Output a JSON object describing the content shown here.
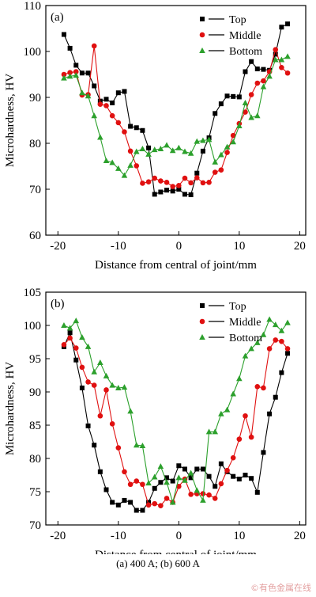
{
  "chart_data": [
    {
      "type": "line",
      "panel_label": "(a)",
      "xlabel": "Distance from central of joint/mm",
      "ylabel": "Microhardness, HV",
      "xlim": [
        -22,
        21
      ],
      "ylim": [
        60,
        110
      ],
      "xticks": [
        -20,
        -10,
        0,
        10,
        20
      ],
      "yticks": [
        60,
        70,
        80,
        90,
        100,
        110
      ],
      "legend_position": "top-right",
      "series": [
        {
          "name": "Top",
          "color": "#000000",
          "marker": "square",
          "x": [
            -19,
            -18,
            -17,
            -16,
            -15,
            -14,
            -13,
            -12,
            -11,
            -10,
            -9,
            -8,
            -7,
            -6,
            -5,
            -4,
            -3,
            -2,
            -1,
            0,
            1,
            2,
            3,
            4,
            5,
            6,
            7,
            8,
            9,
            10,
            11,
            12,
            13,
            14,
            15,
            16,
            17,
            18
          ],
          "y": [
            103.7,
            100.7,
            97.0,
            95.3,
            95.3,
            92.5,
            89.2,
            89.6,
            88.8,
            91.0,
            91.3,
            83.7,
            83.4,
            82.8,
            79.0,
            68.9,
            69.4,
            69.8,
            69.6,
            70.0,
            68.9,
            68.8,
            73.5,
            78.3,
            81.2,
            86.5,
            88.6,
            90.3,
            90.2,
            90.1,
            95.6,
            97.8,
            96.2,
            96.1,
            95.9,
            99.4,
            105.3,
            106.0
          ]
        },
        {
          "name": "Middle",
          "color": "#e01010",
          "marker": "circle",
          "x": [
            -19,
            -18,
            -17,
            -16,
            -15,
            -14,
            -13,
            -12,
            -11,
            -10,
            -9,
            -8,
            -7,
            -6,
            -5,
            -4,
            -3,
            -2,
            -1,
            0,
            1,
            2,
            3,
            4,
            5,
            6,
            7,
            8,
            9,
            10,
            11,
            12,
            13,
            14,
            15,
            16,
            17,
            18
          ],
          "y": [
            95.0,
            95.4,
            95.6,
            90.5,
            90.6,
            101.2,
            88.5,
            88.2,
            86.0,
            84.5,
            82.5,
            78.3,
            75.1,
            71.3,
            71.6,
            72.4,
            71.8,
            71.5,
            70.6,
            70.8,
            72.4,
            71.4,
            72.5,
            71.4,
            71.5,
            73.7,
            74.2,
            78.0,
            81.7,
            84.3,
            86.8,
            90.6,
            93.1,
            93.6,
            95.6,
            100.4,
            96.5,
            95.3
          ]
        },
        {
          "name": "Bottom",
          "color": "#2ca02c",
          "marker": "triangle",
          "x": [
            -19,
            -18,
            -17,
            -16,
            -15,
            -14,
            -13,
            -12,
            -11,
            -10,
            -9,
            -8,
            -7,
            -6,
            -5,
            -4,
            -3,
            -2,
            -1,
            0,
            1,
            2,
            3,
            4,
            5,
            6,
            7,
            8,
            9,
            10,
            11,
            12,
            13,
            14,
            15,
            16,
            17,
            18
          ],
          "y": [
            94.2,
            94.6,
            94.8,
            91.0,
            90.3,
            86.0,
            81.3,
            76.2,
            75.8,
            74.5,
            73.0,
            75.2,
            78.2,
            78.8,
            77.6,
            78.6,
            78.8,
            79.6,
            78.4,
            79.0,
            78.2,
            77.8,
            80.4,
            80.6,
            80.8,
            75.9,
            77.5,
            79.2,
            80.3,
            83.8,
            88.8,
            85.6,
            86.0,
            92.3,
            94.6,
            98.2,
            98.2,
            98.9
          ]
        }
      ]
    },
    {
      "type": "line",
      "panel_label": "(b)",
      "xlabel": "Distance from central of joint/mm",
      "ylabel": "Microhardness, HV",
      "xlim": [
        -22,
        21
      ],
      "ylim": [
        70,
        105
      ],
      "xticks": [
        -20,
        -10,
        0,
        10,
        20
      ],
      "yticks": [
        70,
        75,
        80,
        85,
        90,
        95,
        100,
        105
      ],
      "legend_position": "top-right",
      "series": [
        {
          "name": "Top",
          "color": "#000000",
          "marker": "square",
          "x": [
            -19,
            -18,
            -17,
            -16,
            -15,
            -14,
            -13,
            -12,
            -11,
            -10,
            -9,
            -8,
            -7,
            -6,
            -5,
            -4,
            -3,
            -2,
            -1,
            0,
            1,
            2,
            3,
            4,
            5,
            6,
            7,
            8,
            9,
            10,
            11,
            12,
            13,
            14,
            15,
            16,
            17,
            18
          ],
          "y": [
            96.8,
            98.9,
            94.8,
            90.6,
            84.9,
            82.0,
            78.0,
            75.3,
            73.4,
            73.0,
            73.7,
            73.4,
            72.2,
            72.2,
            73.4,
            75.5,
            76.4,
            77.1,
            76.6,
            78.9,
            78.4,
            77.1,
            78.4,
            78.4,
            77.3,
            75.8,
            79.2,
            78.0,
            77.3,
            76.9,
            77.5,
            77.0,
            74.9,
            80.9,
            86.7,
            89.2,
            92.9,
            95.8
          ]
        },
        {
          "name": "Middle",
          "color": "#e01010",
          "marker": "circle",
          "x": [
            -19,
            -18,
            -17,
            -16,
            -15,
            -14,
            -13,
            -12,
            -11,
            -10,
            -9,
            -8,
            -7,
            -6,
            -5,
            -4,
            -3,
            -2,
            -1,
            0,
            1,
            2,
            3,
            4,
            5,
            6,
            7,
            8,
            9,
            10,
            11,
            12,
            13,
            14,
            15,
            16,
            17,
            18
          ],
          "y": [
            97.1,
            98.1,
            96.6,
            93.7,
            91.5,
            91.0,
            86.4,
            90.3,
            85.2,
            81.6,
            78.0,
            76.1,
            76.6,
            76.1,
            73.0,
            73.2,
            72.9,
            74.0,
            73.4,
            75.8,
            76.9,
            74.6,
            74.7,
            74.7,
            74.5,
            74.0,
            76.2,
            78.2,
            80.1,
            82.9,
            86.4,
            83.2,
            90.8,
            90.6,
            96.5,
            97.8,
            97.6,
            96.5
          ]
        },
        {
          "name": "Bottom",
          "color": "#2ca02c",
          "marker": "triangle",
          "x": [
            -19,
            -18,
            -17,
            -16,
            -15,
            -14,
            -13,
            -12,
            -11,
            -10,
            -9,
            -8,
            -7,
            -6,
            -5,
            -4,
            -3,
            -2,
            -1,
            0,
            1,
            2,
            3,
            4,
            5,
            6,
            7,
            8,
            9,
            10,
            11,
            12,
            13,
            14,
            15,
            16,
            17,
            18
          ],
          "y": [
            100.0,
            99.6,
            100.7,
            98.2,
            96.8,
            93.0,
            94.4,
            92.4,
            91.0,
            90.6,
            90.7,
            87.1,
            82.0,
            81.9,
            76.3,
            77.2,
            78.8,
            76.4,
            73.4,
            77.1,
            76.7,
            77.8,
            75.2,
            73.7,
            84.0,
            84.0,
            86.7,
            87.3,
            89.7,
            92.0,
            95.4,
            96.5,
            97.4,
            98.6,
            100.9,
            100.1,
            99.2,
            100.4
          ]
        }
      ]
    }
  ],
  "caption": "(a) 400 A; (b) 600 A",
  "watermark": "©有色金属在线"
}
